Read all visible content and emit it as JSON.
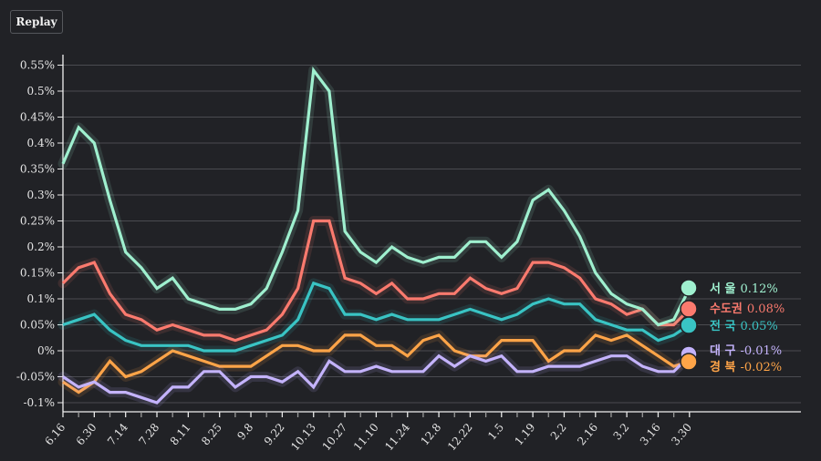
{
  "toolbar": {
    "replay_label": "Replay"
  },
  "chart_data": {
    "type": "line",
    "title": "",
    "xlabel": "",
    "ylabel": "",
    "ylim": [
      -0.1,
      0.55
    ],
    "y_ticks": [
      0.55,
      0.5,
      0.45,
      0.4,
      0.35,
      0.3,
      0.25,
      0.2,
      0.15,
      0.1,
      0.05,
      0,
      -0.05,
      -0.1
    ],
    "y_tick_labels": [
      "0.55%",
      "0.5%",
      "0.45%",
      "0.4%",
      "0.35%",
      "0.3%",
      "0.25%",
      "0.2%",
      "0.15%",
      "0.1%",
      "0.05%",
      "0%",
      "-0.05%",
      "-0.1%"
    ],
    "x_count": 41,
    "x_tick_labels": [
      {
        "index": 0,
        "label": "6.16"
      },
      {
        "index": 2,
        "label": "6.30"
      },
      {
        "index": 4,
        "label": "7.14"
      },
      {
        "index": 6,
        "label": "7.28"
      },
      {
        "index": 8,
        "label": "8.11"
      },
      {
        "index": 10,
        "label": "8.25"
      },
      {
        "index": 12,
        "label": "9.8"
      },
      {
        "index": 14,
        "label": "9.22"
      },
      {
        "index": 16,
        "label": "10.13"
      },
      {
        "index": 18,
        "label": "10.27"
      },
      {
        "index": 20,
        "label": "11.10"
      },
      {
        "index": 22,
        "label": "11.24"
      },
      {
        "index": 24,
        "label": "12.8"
      },
      {
        "index": 26,
        "label": "12.22"
      },
      {
        "index": 28,
        "label": "1.5"
      },
      {
        "index": 30,
        "label": "1.19"
      },
      {
        "index": 32,
        "label": "2.2"
      },
      {
        "index": 34,
        "label": "2.16"
      },
      {
        "index": 36,
        "label": "3.2"
      },
      {
        "index": 38,
        "label": "3.16"
      },
      {
        "index": 40,
        "label": "3.30"
      }
    ],
    "grid": true,
    "legend_placement": "end-of-lines",
    "series": [
      {
        "name": "서 울",
        "end_label": "0.12%",
        "color": "#9ff0cf",
        "values": [
          0.36,
          0.43,
          0.4,
          0.29,
          0.19,
          0.16,
          0.12,
          0.14,
          0.1,
          0.09,
          0.08,
          0.08,
          0.09,
          0.12,
          0.19,
          0.27,
          0.54,
          0.5,
          0.23,
          0.19,
          0.17,
          0.2,
          0.18,
          0.17,
          0.18,
          0.18,
          0.21,
          0.21,
          0.18,
          0.21,
          0.29,
          0.31,
          0.27,
          0.22,
          0.15,
          0.11,
          0.09,
          0.08,
          0.05,
          0.06,
          0.12
        ]
      },
      {
        "name": "수도권",
        "end_label": "0.08%",
        "color": "#fb7a6e",
        "values": [
          0.13,
          0.16,
          0.17,
          0.11,
          0.07,
          0.06,
          0.04,
          0.05,
          0.04,
          0.03,
          0.03,
          0.02,
          0.03,
          0.04,
          0.07,
          0.12,
          0.25,
          0.25,
          0.14,
          0.13,
          0.11,
          0.13,
          0.1,
          0.1,
          0.11,
          0.11,
          0.14,
          0.12,
          0.11,
          0.12,
          0.17,
          0.17,
          0.16,
          0.14,
          0.1,
          0.09,
          0.07,
          0.08,
          0.05,
          0.05,
          0.08
        ]
      },
      {
        "name": "전 국",
        "end_label": "0.05%",
        "color": "#39c4c4",
        "values": [
          0.05,
          0.06,
          0.07,
          0.04,
          0.02,
          0.01,
          0.01,
          0.01,
          0.01,
          0.0,
          0.0,
          0.0,
          0.01,
          0.02,
          0.03,
          0.06,
          0.13,
          0.12,
          0.07,
          0.07,
          0.06,
          0.07,
          0.06,
          0.06,
          0.06,
          0.07,
          0.08,
          0.07,
          0.06,
          0.07,
          0.09,
          0.1,
          0.09,
          0.09,
          0.06,
          0.05,
          0.04,
          0.04,
          0.02,
          0.03,
          0.05
        ]
      },
      {
        "name": "대 구",
        "end_label": "-0.01%",
        "color": "#c4b3fc",
        "values": [
          -0.05,
          -0.07,
          -0.06,
          -0.08,
          -0.08,
          -0.09,
          -0.1,
          -0.07,
          -0.07,
          -0.04,
          -0.04,
          -0.07,
          -0.05,
          -0.05,
          -0.06,
          -0.04,
          -0.07,
          -0.02,
          -0.04,
          -0.04,
          -0.03,
          -0.04,
          -0.04,
          -0.04,
          -0.01,
          -0.03,
          -0.01,
          -0.02,
          -0.01,
          -0.04,
          -0.04,
          -0.03,
          -0.03,
          -0.03,
          -0.02,
          -0.01,
          -0.01,
          -0.03,
          -0.04,
          -0.04,
          -0.01
        ]
      },
      {
        "name": "경 북",
        "end_label": "-0.02%",
        "color": "#fea448",
        "values": [
          -0.06,
          -0.08,
          -0.06,
          -0.02,
          -0.05,
          -0.04,
          -0.02,
          0.0,
          -0.01,
          -0.02,
          -0.03,
          -0.03,
          -0.03,
          -0.01,
          0.01,
          0.01,
          0.0,
          0.0,
          0.03,
          0.03,
          0.01,
          0.01,
          -0.01,
          0.02,
          0.03,
          0.0,
          -0.01,
          -0.01,
          0.02,
          0.02,
          0.02,
          -0.02,
          0.0,
          0.0,
          0.03,
          0.02,
          0.03,
          0.01,
          -0.01,
          -0.03,
          -0.02
        ]
      }
    ]
  }
}
